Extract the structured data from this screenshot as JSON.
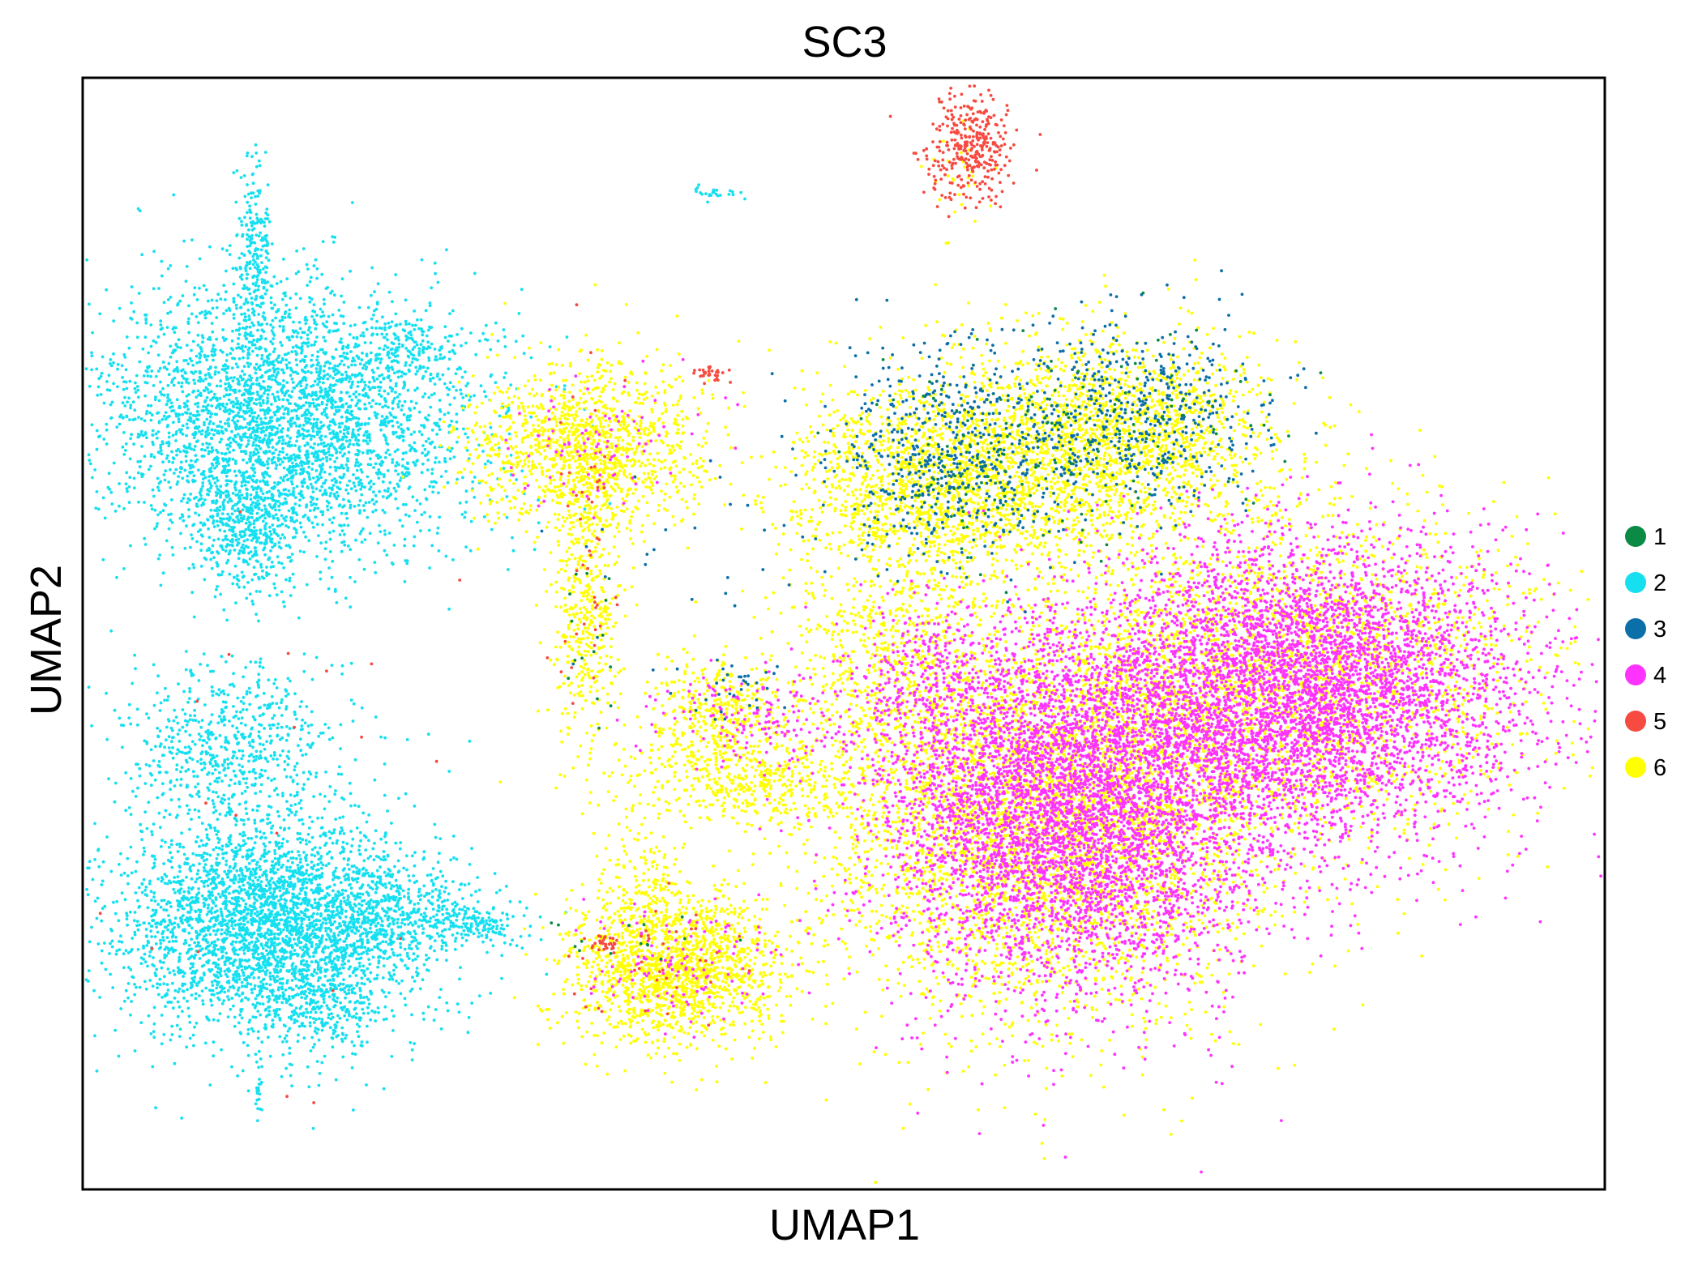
{
  "chart_data": {
    "type": "scatter",
    "title": "SC3",
    "xlabel": "UMAP1",
    "ylabel": "UMAP2",
    "xlim": [
      -10.5,
      21.5
    ],
    "ylim": [
      -7.5,
      16.5
    ],
    "grid": false,
    "ticks_shown": false,
    "legend": {
      "placement": "right",
      "entries": [
        {
          "label": "1",
          "color": "#0a8a45"
        },
        {
          "label": "2",
          "color": "#16e0f0"
        },
        {
          "label": "3",
          "color": "#0b6fa8"
        },
        {
          "label": "4",
          "color": "#ff33ff"
        },
        {
          "label": "5",
          "color": "#f74a40"
        },
        {
          "label": "6",
          "color": "#ffff00"
        }
      ]
    },
    "series": [
      {
        "label": "2",
        "color": "#16e0f0",
        "regions": [
          {
            "cx": -6.2,
            "cy": 9.1,
            "sx": 2.0,
            "sy": 1.4,
            "n": 3400
          },
          {
            "cx": -7.0,
            "cy": 6.8,
            "sx": 0.6,
            "sy": 0.7,
            "n": 450
          },
          {
            "cx": -6.9,
            "cy": 12.6,
            "sx": 0.2,
            "sy": 1.0,
            "n": 220
          },
          {
            "cx": -3.7,
            "cy": 10.7,
            "sx": 0.45,
            "sy": 0.3,
            "n": 110
          },
          {
            "cx": -7.4,
            "cy": 2.1,
            "sx": 1.1,
            "sy": 0.9,
            "n": 650
          },
          {
            "cx": -6.5,
            "cy": -1.8,
            "sx": 1.6,
            "sy": 1.2,
            "n": 3400
          },
          {
            "cx": -4.0,
            "cy": -1.5,
            "sx": 0.9,
            "sy": 0.5,
            "n": 350
          },
          {
            "cx": -2.3,
            "cy": -1.8,
            "sx": 0.6,
            "sy": 0.2,
            "n": 160
          },
          {
            "cx": -5.3,
            "cy": -3.5,
            "sx": 0.7,
            "sy": 0.4,
            "n": 160
          },
          {
            "cx": 2.8,
            "cy": 14.0,
            "sx": 0.3,
            "sy": 0.08,
            "n": 25
          },
          {
            "cx": -6.8,
            "cy": -5.4,
            "sx": 0.05,
            "sy": 0.3,
            "n": 20
          }
        ]
      },
      {
        "label": "6",
        "color": "#ffff00",
        "regions": [
          {
            "cx": 0.1,
            "cy": 8.5,
            "sx": 1.2,
            "sy": 0.9,
            "n": 1300
          },
          {
            "cx": 0.1,
            "cy": 5.0,
            "sx": 0.35,
            "sy": 1.6,
            "n": 420
          },
          {
            "cx": 1.9,
            "cy": -2.7,
            "sx": 1.1,
            "sy": 0.8,
            "n": 1600
          },
          {
            "cx": 2.9,
            "cy": 2.8,
            "sx": 0.8,
            "sy": 0.6,
            "n": 420
          },
          {
            "cx": 3.6,
            "cy": 1.3,
            "sx": 1.3,
            "sy": 0.5,
            "n": 420
          },
          {
            "cx": 7.5,
            "cy": 7.8,
            "sx": 1.6,
            "sy": 1.1,
            "n": 1800
          },
          {
            "cx": 11.3,
            "cy": 8.8,
            "sx": 1.6,
            "sy": 1.1,
            "n": 1800
          },
          {
            "cx": 9.8,
            "cy": 0.5,
            "sx": 2.4,
            "sy": 2.1,
            "n": 4600
          },
          {
            "cx": 14.8,
            "cy": 3.6,
            "sx": 2.6,
            "sy": 1.8,
            "n": 2600
          },
          {
            "cx": 6.5,
            "cy": 4.0,
            "sx": 1.0,
            "sy": 1.2,
            "n": 500
          },
          {
            "cx": 1.3,
            "cy": -0.9,
            "sx": 0.4,
            "sy": 0.9,
            "n": 150
          },
          {
            "cx": 8.0,
            "cy": 14.3,
            "sx": 0.4,
            "sy": 0.5,
            "n": 30
          }
        ]
      },
      {
        "label": "4",
        "color": "#ff33ff",
        "regions": [
          {
            "cx": 10.3,
            "cy": 0.7,
            "sx": 2.0,
            "sy": 1.9,
            "n": 5200
          },
          {
            "cx": 15.3,
            "cy": 3.3,
            "sx": 2.3,
            "sy": 1.6,
            "n": 5000
          },
          {
            "cx": 7.4,
            "cy": 3.3,
            "sx": 0.9,
            "sy": 0.9,
            "n": 350
          },
          {
            "cx": 3.6,
            "cy": 2.6,
            "sx": 1.0,
            "sy": 0.5,
            "n": 160
          },
          {
            "cx": 2.2,
            "cy": -2.7,
            "sx": 1.0,
            "sy": 0.7,
            "n": 120
          },
          {
            "cx": 0.3,
            "cy": 8.4,
            "sx": 1.0,
            "sy": 0.8,
            "n": 90
          }
        ]
      },
      {
        "label": "3",
        "color": "#0b6fa8",
        "regions": [
          {
            "cx": 7.8,
            "cy": 8.4,
            "sx": 1.3,
            "sy": 1.1,
            "n": 600
          },
          {
            "cx": 11.6,
            "cy": 9.3,
            "sx": 1.3,
            "sy": 1.0,
            "n": 520
          },
          {
            "cx": 3.3,
            "cy": 3.3,
            "sx": 0.5,
            "sy": 0.4,
            "n": 30
          },
          {
            "cx": 2.5,
            "cy": 6.0,
            "sx": 1.5,
            "sy": 1.5,
            "n": 30
          }
        ]
      },
      {
        "label": "1",
        "color": "#0a8a45",
        "regions": [
          {
            "cx": 8.5,
            "cy": 8.2,
            "sx": 1.5,
            "sy": 1.0,
            "n": 90
          },
          {
            "cx": 11.5,
            "cy": 9.0,
            "sx": 1.5,
            "sy": 1.0,
            "n": 70
          },
          {
            "cx": 0.3,
            "cy": 4.3,
            "sx": 0.3,
            "sy": 1.0,
            "n": 15
          },
          {
            "cx": 1.0,
            "cy": -2.2,
            "sx": 1.0,
            "sy": 0.4,
            "n": 15
          }
        ]
      },
      {
        "label": "5",
        "color": "#f74a40",
        "regions": [
          {
            "cx": 8.2,
            "cy": 15.0,
            "sx": 0.45,
            "sy": 0.6,
            "n": 340
          },
          {
            "cx": 2.7,
            "cy": 10.1,
            "sx": 0.15,
            "sy": 0.1,
            "n": 30
          },
          {
            "cx": 0.5,
            "cy": -2.2,
            "sx": 0.2,
            "sy": 0.1,
            "n": 30
          },
          {
            "cx": 0.1,
            "cy": 6.5,
            "sx": 0.4,
            "sy": 2.2,
            "n": 45
          },
          {
            "cx": 1.8,
            "cy": -2.7,
            "sx": 1.0,
            "sy": 0.7,
            "n": 35
          },
          {
            "cx": -6.0,
            "cy": 0.5,
            "sx": 1.8,
            "sy": 3.5,
            "n": 20
          }
        ]
      }
    ]
  }
}
